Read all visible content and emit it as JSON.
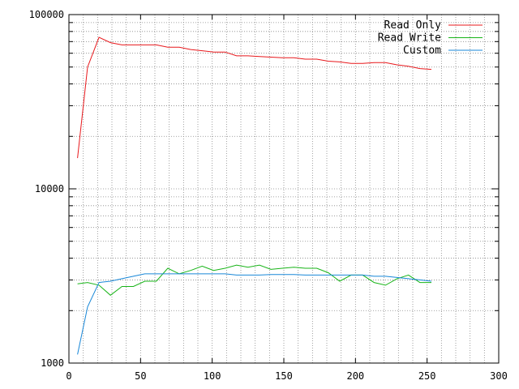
{
  "chart_data": {
    "type": "line",
    "title": "",
    "xlabel": "",
    "ylabel": "",
    "x_scale": "linear",
    "y_scale": "log",
    "xlim": [
      0,
      300
    ],
    "ylim": [
      1000,
      100000
    ],
    "x_ticks": [
      0,
      50,
      100,
      150,
      200,
      250,
      300
    ],
    "x_tick_labels": [
      "0",
      "50",
      "100",
      "150",
      "200",
      "250",
      "300"
    ],
    "y_ticks": [
      1000,
      10000,
      100000
    ],
    "y_tick_labels": [
      "1000",
      "10000",
      "100000"
    ],
    "grid": true,
    "legend_position": "top-right",
    "series": [
      {
        "name": "Read Only",
        "color": "#e8181c",
        "x": [
          6,
          13,
          21,
          29,
          37,
          45,
          53,
          61,
          69,
          77,
          85,
          93,
          101,
          109,
          117,
          125,
          133,
          141,
          149,
          157,
          165,
          173,
          181,
          189,
          197,
          205,
          213,
          221,
          229,
          237,
          245,
          253
        ],
        "y": [
          15000,
          50000,
          74000,
          69000,
          67000,
          67000,
          67000,
          67000,
          65000,
          65000,
          63000,
          62000,
          61000,
          61000,
          58000,
          58000,
          57500,
          57000,
          56500,
          56500,
          55500,
          55500,
          54000,
          53500,
          52500,
          52500,
          53000,
          53000,
          51500,
          50500,
          49000,
          48500
        ]
      },
      {
        "name": "Read Write",
        "color": "#18b418",
        "x": [
          6,
          13,
          21,
          29,
          37,
          45,
          53,
          61,
          69,
          77,
          85,
          93,
          101,
          109,
          117,
          125,
          133,
          141,
          149,
          157,
          165,
          173,
          181,
          189,
          197,
          205,
          213,
          221,
          229,
          237,
          245,
          253
        ],
        "y": [
          2850,
          2900,
          2800,
          2450,
          2750,
          2750,
          2950,
          2950,
          3500,
          3250,
          3400,
          3600,
          3400,
          3500,
          3650,
          3550,
          3650,
          3450,
          3500,
          3550,
          3500,
          3500,
          3300,
          2950,
          3200,
          3200,
          2900,
          2800,
          3050,
          3200,
          2900,
          2900
        ]
      },
      {
        "name": "Custom",
        "color": "#1887d8",
        "x": [
          6,
          13,
          21,
          29,
          37,
          45,
          53,
          61,
          69,
          77,
          85,
          93,
          101,
          109,
          117,
          125,
          133,
          141,
          149,
          157,
          165,
          173,
          181,
          189,
          197,
          205,
          213,
          221,
          229,
          237,
          245,
          253
        ],
        "y": [
          1120,
          2100,
          2900,
          2950,
          3050,
          3150,
          3250,
          3250,
          3250,
          3250,
          3250,
          3250,
          3250,
          3250,
          3200,
          3200,
          3200,
          3220,
          3220,
          3220,
          3200,
          3200,
          3200,
          3200,
          3200,
          3200,
          3150,
          3150,
          3100,
          3050,
          3000,
          2950
        ]
      }
    ]
  }
}
